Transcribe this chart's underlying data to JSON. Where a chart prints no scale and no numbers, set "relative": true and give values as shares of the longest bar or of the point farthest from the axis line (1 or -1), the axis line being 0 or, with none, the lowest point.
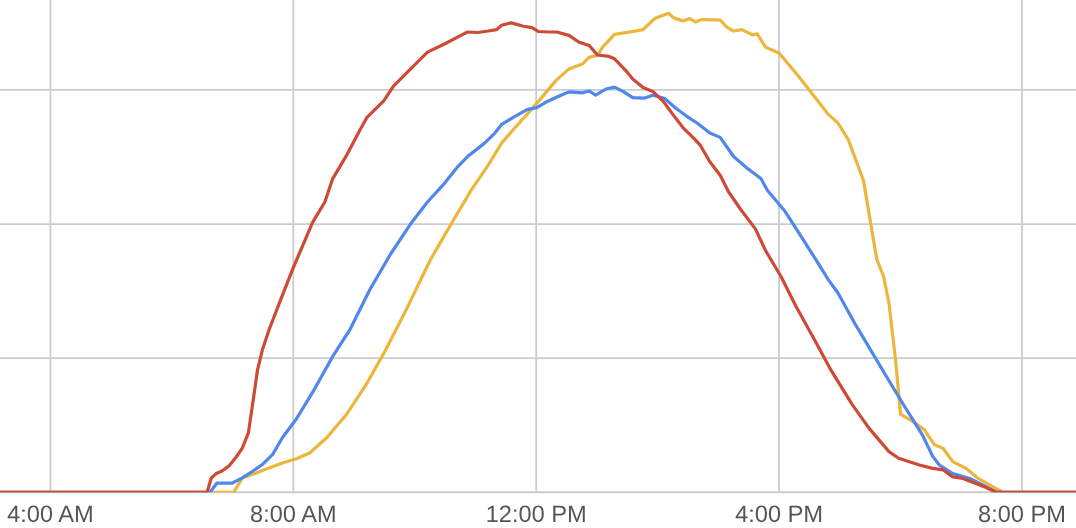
{
  "chart_data": {
    "type": "line",
    "relative": true,
    "grid": true,
    "tick_labels": "x",
    "line_style": "solid",
    "xlim": [
      3.17,
      20.89
    ],
    "xticks": [
      {
        "value": 4,
        "label": "4:00 AM"
      },
      {
        "value": 8,
        "label": "8:00 AM"
      },
      {
        "value": 12,
        "label": "12:00 PM"
      },
      {
        "value": 16,
        "label": "4:00 PM"
      },
      {
        "value": 20,
        "label": "8:00 PM"
      }
    ],
    "series": [
      {
        "color": "#ecb53b",
        "x": [
          3.17,
          6.72,
          7.02,
          7.16,
          7.38,
          7.6,
          7.82,
          8.05,
          8.27,
          8.55,
          8.71,
          8.88,
          9.21,
          9.49,
          9.82,
          10.26,
          10.65,
          10.93,
          11.21,
          11.43,
          11.65,
          11.87,
          12.09,
          12.32,
          12.54,
          12.76,
          12.87,
          13.01,
          13.09,
          13.29,
          13.54,
          13.76,
          13.95,
          14.18,
          14.26,
          14.42,
          14.53,
          14.62,
          14.73,
          15.03,
          15.14,
          15.25,
          15.39,
          15.56,
          15.64,
          15.78,
          16.0,
          16.31,
          16.64,
          16.81,
          16.97,
          17.14,
          17.39,
          17.61,
          17.72,
          17.81,
          17.92,
          18.0,
          18.2,
          18.39,
          18.56,
          18.7,
          18.86,
          19.08,
          19.28,
          19.47,
          19.69,
          20.89
        ],
        "values": [
          0,
          0,
          0,
          0.03,
          0.04,
          0.051,
          0.061,
          0.07,
          0.082,
          0.114,
          0.138,
          0.163,
          0.227,
          0.29,
          0.371,
          0.486,
          0.571,
          0.631,
          0.683,
          0.729,
          0.761,
          0.792,
          0.824,
          0.859,
          0.884,
          0.894,
          0.908,
          0.912,
          0.929,
          0.956,
          0.961,
          0.966,
          0.989,
          1.0,
          0.991,
          0.984,
          0.989,
          0.982,
          0.987,
          0.986,
          0.971,
          0.963,
          0.966,
          0.955,
          0.957,
          0.929,
          0.917,
          0.87,
          0.817,
          0.789,
          0.771,
          0.736,
          0.651,
          0.486,
          0.451,
          0.395,
          0.275,
          0.163,
          0.148,
          0.131,
          0.099,
          0.092,
          0.064,
          0.05,
          0.029,
          0.015,
          0,
          0
        ]
      },
      {
        "color": "#4f87ec",
        "x": [
          3.17,
          6.63,
          6.74,
          6.99,
          7.16,
          7.33,
          7.49,
          7.66,
          7.82,
          8.05,
          8.32,
          8.66,
          8.93,
          9.26,
          9.6,
          9.93,
          10.21,
          10.49,
          10.71,
          10.87,
          11.15,
          11.32,
          11.43,
          11.65,
          11.85,
          12.01,
          12.2,
          12.37,
          12.54,
          12.76,
          12.87,
          12.98,
          13.15,
          13.29,
          13.43,
          13.59,
          13.79,
          13.92,
          14.12,
          14.29,
          14.48,
          14.65,
          14.86,
          15.03,
          15.25,
          15.48,
          15.7,
          15.81,
          16.09,
          16.36,
          16.64,
          16.81,
          16.97,
          17.25,
          17.48,
          17.81,
          18.03,
          18.36,
          18.53,
          18.64,
          18.86,
          19.14,
          19.36,
          19.58,
          20.89
        ],
        "values": [
          0,
          0,
          0.019,
          0.019,
          0.03,
          0.044,
          0.058,
          0.079,
          0.114,
          0.153,
          0.209,
          0.286,
          0.339,
          0.423,
          0.497,
          0.56,
          0.606,
          0.645,
          0.68,
          0.701,
          0.729,
          0.75,
          0.768,
          0.785,
          0.799,
          0.803,
          0.817,
          0.827,
          0.836,
          0.834,
          0.838,
          0.829,
          0.842,
          0.846,
          0.837,
          0.824,
          0.823,
          0.829,
          0.822,
          0.803,
          0.785,
          0.771,
          0.75,
          0.741,
          0.701,
          0.676,
          0.655,
          0.63,
          0.588,
          0.535,
          0.479,
          0.444,
          0.416,
          0.352,
          0.303,
          0.233,
          0.187,
          0.12,
          0.075,
          0.057,
          0.039,
          0.029,
          0.015,
          0,
          0
        ]
      },
      {
        "color": "#cd4a36",
        "x": [
          3.17,
          6.58,
          6.65,
          6.74,
          6.82,
          6.94,
          7.05,
          7.16,
          7.26,
          7.33,
          7.41,
          7.49,
          7.6,
          7.77,
          7.99,
          8.32,
          8.52,
          8.65,
          8.88,
          9.1,
          9.21,
          9.49,
          9.65,
          9.9,
          10.21,
          10.49,
          10.76,
          10.87,
          11.04,
          11.21,
          11.35,
          11.43,
          11.59,
          11.79,
          11.93,
          12.04,
          12.2,
          12.34,
          12.54,
          12.7,
          12.87,
          13.01,
          13.2,
          13.29,
          13.48,
          13.59,
          13.76,
          13.92,
          14.09,
          14.25,
          14.42,
          14.59,
          14.7,
          14.86,
          15.03,
          15.17,
          15.36,
          15.61,
          15.78,
          16.03,
          16.28,
          16.59,
          16.86,
          17.2,
          17.48,
          17.81,
          17.97,
          18.31,
          18.53,
          18.7,
          18.86,
          19.03,
          19.25,
          19.39,
          19.58,
          20.89
        ],
        "values": [
          0,
          0,
          0.03,
          0.04,
          0.044,
          0.055,
          0.072,
          0.092,
          0.124,
          0.184,
          0.255,
          0.297,
          0.339,
          0.395,
          0.466,
          0.564,
          0.606,
          0.655,
          0.704,
          0.757,
          0.782,
          0.817,
          0.848,
          0.88,
          0.919,
          0.936,
          0.954,
          0.961,
          0.96,
          0.963,
          0.966,
          0.975,
          0.98,
          0.973,
          0.97,
          0.962,
          0.961,
          0.961,
          0.954,
          0.94,
          0.933,
          0.913,
          0.91,
          0.905,
          0.88,
          0.863,
          0.845,
          0.837,
          0.817,
          0.789,
          0.761,
          0.74,
          0.725,
          0.69,
          0.662,
          0.627,
          0.592,
          0.55,
          0.504,
          0.451,
          0.388,
          0.317,
          0.254,
          0.184,
          0.134,
          0.085,
          0.071,
          0.057,
          0.05,
          0.047,
          0.032,
          0.029,
          0.018,
          0.011,
          0,
          0
        ]
      }
    ]
  }
}
